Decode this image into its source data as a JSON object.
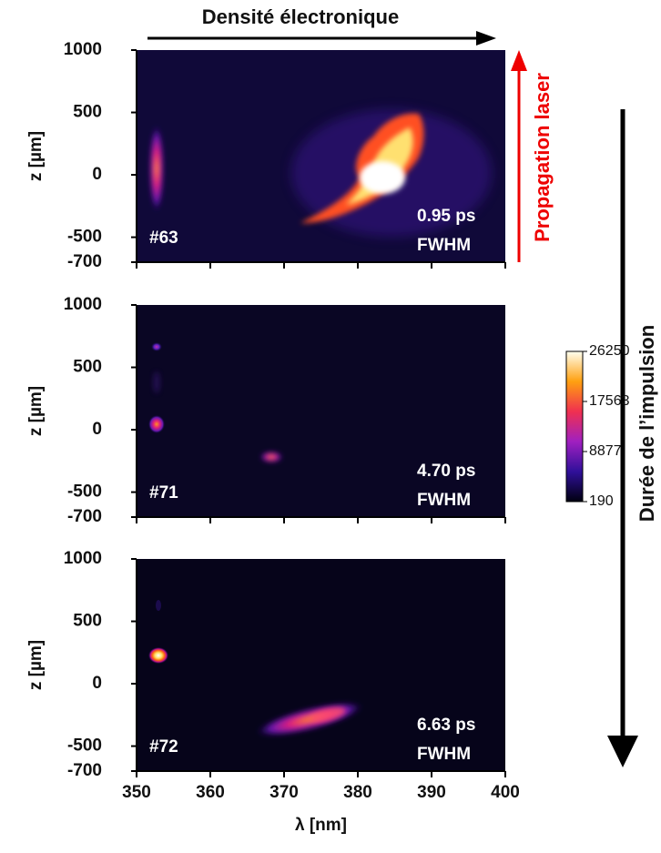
{
  "chart_data": [
    {
      "type": "heatmap",
      "ylabel": "z [µm]",
      "ylim": [
        -700,
        1000
      ],
      "yticks": [
        1000,
        500,
        0,
        -500,
        -700
      ],
      "xlim": [
        350,
        400
      ],
      "xticks": [
        350,
        360,
        370,
        380,
        390,
        400
      ],
      "shot": "#63",
      "duration": "0.95 ps",
      "duration_note": "FWHM"
    },
    {
      "type": "heatmap",
      "ylabel": "z [µm]",
      "ylim": [
        -700,
        1000
      ],
      "yticks": [
        1000,
        500,
        0,
        -500,
        -700
      ],
      "xlim": [
        350,
        400
      ],
      "xticks": [
        350,
        360,
        370,
        380,
        390,
        400
      ],
      "shot": "#71",
      "duration": "4.70 ps",
      "duration_note": "FWHM",
      "colorbar": {
        "lim": [
          190,
          26250
        ],
        "ticks": [
          26250,
          17563,
          8877,
          190
        ]
      }
    },
    {
      "type": "heatmap",
      "ylabel": "z [µm]",
      "xlabel": "λ [nm]",
      "ylim": [
        -700,
        1000
      ],
      "yticks": [
        1000,
        500,
        0,
        -500,
        -700
      ],
      "xlim": [
        350,
        400
      ],
      "xticks": [
        350,
        360,
        370,
        380,
        390,
        400
      ],
      "shot": "#72",
      "duration": "6.63 ps",
      "duration_note": "FWHM"
    }
  ],
  "annotations": {
    "density": "Densité électronique",
    "propagation": "Propagation laser",
    "pulse_duration": "Durée de l’impulsion"
  }
}
